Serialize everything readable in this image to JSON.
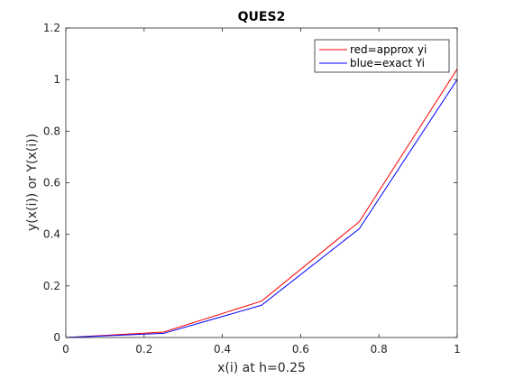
{
  "chart_data": {
    "type": "line",
    "title": "QUES2",
    "xlabel": "x(i) at h=0.25",
    "ylabel": "y(x(i)) or Y(x(i))",
    "xlim": [
      0,
      1
    ],
    "ylim": [
      0,
      1.2
    ],
    "xticks": [
      0,
      0.2,
      0.4,
      0.6,
      0.8,
      1
    ],
    "xtick_labels": [
      "0",
      "0.2",
      "0.4",
      "0.6",
      "0.8",
      "1"
    ],
    "yticks": [
      0,
      0.2,
      0.4,
      0.6,
      0.8,
      1,
      1.2
    ],
    "ytick_labels": [
      "0",
      "0.2",
      "0.4",
      "0.6",
      "0.8",
      "1",
      "1.2"
    ],
    "grid": false,
    "legend_position": "top-right",
    "x": [
      0,
      0.25,
      0.5,
      0.75,
      1
    ],
    "series": [
      {
        "name": "red=approx yi",
        "color": "#ff0000",
        "values": [
          0,
          0.021,
          0.141,
          0.449,
          1.041
        ]
      },
      {
        "name": "blue=exact Yi",
        "color": "#0000ff",
        "values": [
          0,
          0.016,
          0.125,
          0.422,
          1.0
        ]
      }
    ]
  }
}
